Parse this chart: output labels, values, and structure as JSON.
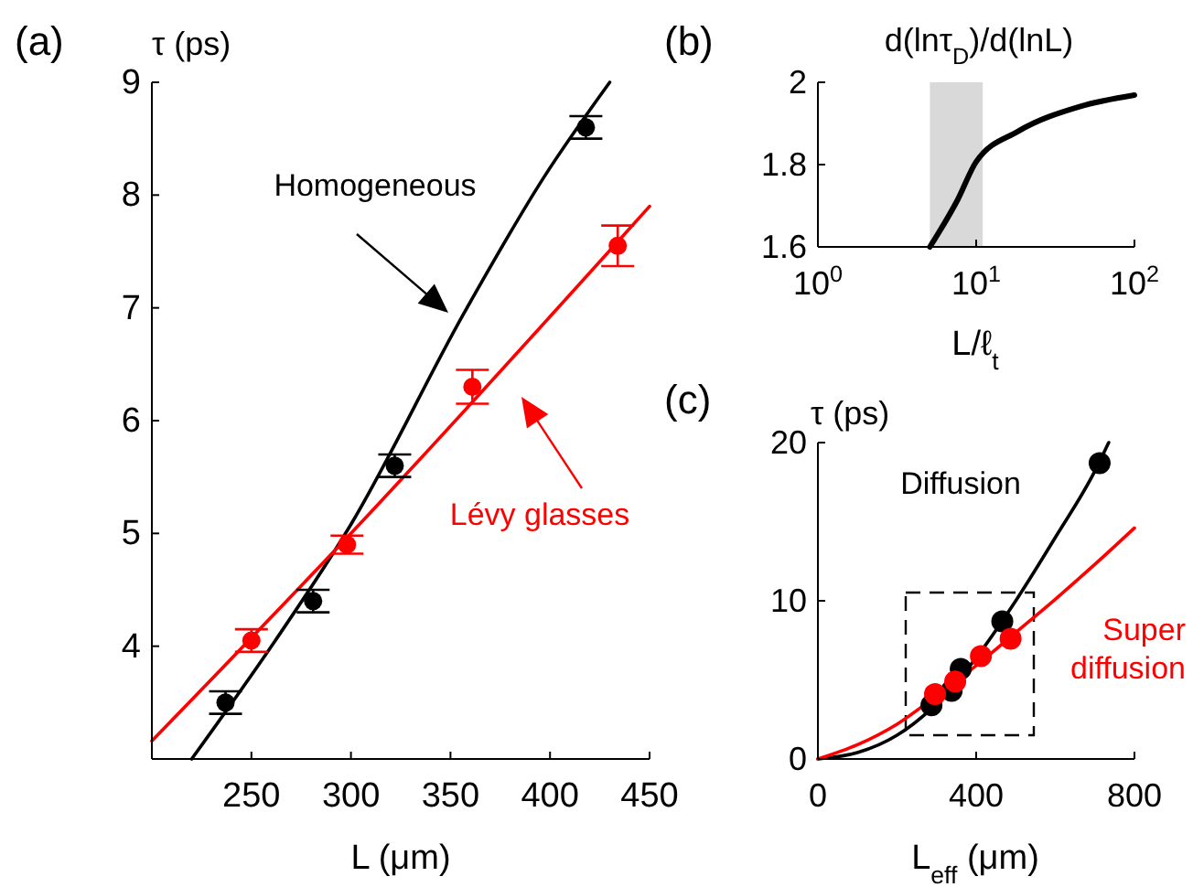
{
  "chart_data": [
    {
      "type": "line",
      "title": "(a)",
      "ylabel": "τ (ps)",
      "xlabel": "L (μm)",
      "xlim": [
        200,
        450
      ],
      "ylim": [
        3,
        9
      ],
      "xticks": [
        250,
        300,
        350,
        400,
        450
      ],
      "yticks": [
        4,
        5,
        6,
        7,
        8,
        9
      ],
      "grid": false,
      "series": [
        {
          "type": "line",
          "marker": "none",
          "name": "Homogeneous",
          "color": "#000000",
          "x": [
            220,
            262,
            300,
            357,
            397,
            430
          ],
          "values": [
            3,
            4.05,
            5.08,
            6.96,
            8.16,
            9
          ]
        },
        {
          "type": "line",
          "marker": "none",
          "name": "Lévy glasses",
          "color": "#ff0000",
          "x": [
            200,
            300,
            450
          ],
          "values": [
            3.16,
            5.0,
            7.9
          ]
        },
        {
          "type": "scatter",
          "marker": "circle",
          "color": "#000000",
          "x": [
            237,
            281,
            322,
            418
          ],
          "values": [
            3.5,
            4.4,
            5.6,
            8.6
          ],
          "errors": [
            0.1,
            0.1,
            0.1,
            0.1
          ]
        },
        {
          "type": "scatter",
          "marker": "circle",
          "color": "#ff0000",
          "x": [
            250,
            298,
            361,
            434
          ],
          "values": [
            4.05,
            4.9,
            6.3,
            7.55
          ],
          "errors": [
            0.1,
            0.08,
            0.15,
            0.18
          ]
        }
      ]
    },
    {
      "type": "line",
      "title": "(b)",
      "ylabel": "d(lnτ$_{D}$)/d(lnL)",
      "xlabel": "L/ℓ$_{t}$",
      "log": "x",
      "xlim": [
        1,
        100
      ],
      "ylim": [
        1.6,
        2
      ],
      "xticks": [
        {
          "value": 1,
          "label": "10$^{0}$"
        },
        {
          "value": 10,
          "label": "10$^{1}$"
        },
        {
          "value": 100,
          "label": "10$^{2}$"
        }
      ],
      "yticks": [
        1.6,
        1.8,
        2
      ],
      "grid": false,
      "bands": [
        {
          "axis": "x",
          "from": 5.1,
          "to": 11,
          "color": "#d9d9d9"
        }
      ],
      "series": [
        {
          "type": "line",
          "color": "#000000",
          "x": [
            5.1,
            7.65,
            10,
            18.4,
            45,
            100
          ],
          "values": [
            1.6,
            1.715,
            1.807,
            1.881,
            1.941,
            1.969
          ]
        }
      ]
    },
    {
      "type": "line",
      "title": "(c)",
      "ylabel": "τ (ps)",
      "xlabel": "L$_{eff}$ (μm)",
      "xlim": [
        0,
        800
      ],
      "ylim": [
        0,
        20
      ],
      "xticks": [
        0,
        400,
        800
      ],
      "yticks": [
        0,
        10,
        20
      ],
      "grid": false,
      "series": [
        {
          "type": "line",
          "marker": "none",
          "name": "Diffusion",
          "color": "#000000",
          "x": [
            0,
            100,
            200,
            300,
            400,
            500,
            600,
            700,
            735
          ],
          "values": [
            0,
            0.4,
            1.5,
            3.5,
            6.4,
            10,
            14,
            18.2,
            20
          ]
        },
        {
          "type": "line",
          "marker": "none",
          "name": "Super diffusion",
          "color": "#ff0000",
          "x": [
            0,
            100,
            200,
            300,
            400,
            500,
            600,
            700,
            800
          ],
          "values": [
            0,
            0.9,
            2.2,
            4.0,
            5.9,
            8.0,
            10.1,
            12.3,
            14.6
          ]
        },
        {
          "type": "scatter",
          "marker": "circle",
          "color": "#000000",
          "x": [
            287,
            338,
            361,
            466,
            712
          ],
          "values": [
            3.4,
            4.3,
            5.7,
            8.7,
            18.7
          ]
        },
        {
          "type": "scatter",
          "marker": "circle",
          "color": "#ff0000",
          "x": [
            296,
            347,
            412,
            487
          ],
          "values": [
            4.1,
            4.9,
            6.5,
            7.6
          ]
        }
      ]
    }
  ]
}
